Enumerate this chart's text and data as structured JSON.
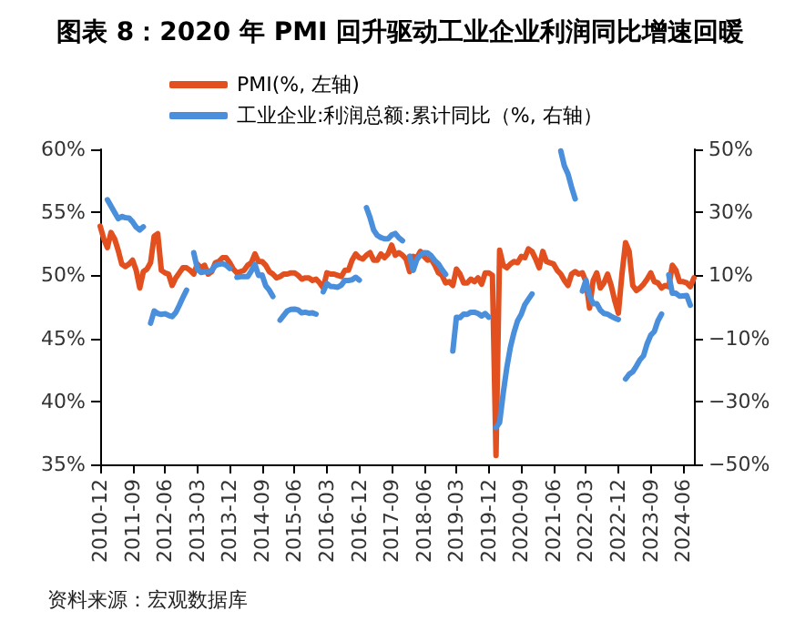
{
  "chart_data": {
    "type": "line",
    "title": "图表 8：2020 年 PMI 回升驱动工业企业利润同比增速回暖",
    "categories": [
      "2010-12",
      null,
      null,
      null,
      null,
      null,
      null,
      null,
      null,
      "2011-09",
      null,
      null,
      null,
      null,
      null,
      null,
      null,
      null,
      "2012-06",
      null,
      null,
      null,
      null,
      null,
      null,
      null,
      null,
      "2013-03",
      null,
      null,
      null,
      null,
      null,
      null,
      null,
      null,
      "2013-12",
      null,
      null,
      null,
      null,
      null,
      null,
      null,
      null,
      "2014-09",
      null,
      null,
      null,
      null,
      null,
      null,
      null,
      null,
      "2015-06",
      null,
      null,
      null,
      null,
      null,
      null,
      null,
      null,
      "2016-03",
      null,
      null,
      null,
      null,
      null,
      null,
      null,
      null,
      "2016-12",
      null,
      null,
      null,
      null,
      null,
      null,
      null,
      null,
      "2017-09",
      null,
      null,
      null,
      null,
      null,
      null,
      null,
      null,
      "2018-06",
      null,
      null,
      null,
      null,
      null,
      null,
      null,
      null,
      "2019-03",
      null,
      null,
      null,
      null,
      null,
      null,
      null,
      null,
      "2019-12",
      null,
      null,
      null,
      null,
      null,
      null,
      null,
      null,
      "2020-09",
      null,
      null,
      null,
      null,
      null,
      null,
      null,
      null,
      "2021-06",
      null,
      null,
      null,
      null,
      null,
      null,
      null,
      null,
      "2022-03",
      null,
      null,
      null,
      null,
      null,
      null,
      null,
      null,
      "2022-12",
      null,
      null,
      null,
      null,
      null,
      null,
      null,
      null,
      "2023-09",
      null,
      null,
      null,
      null,
      null,
      null,
      null,
      null,
      "2024-06",
      null,
      null,
      null
    ],
    "series": [
      {
        "name": "PMI(%, 左轴)",
        "color": "#e2501f",
        "values": [
          53.9,
          52.9,
          52.2,
          53.4,
          52.9,
          52.0,
          50.9,
          50.7,
          50.9,
          51.2,
          50.4,
          49.0,
          50.3,
          50.5,
          51.0,
          53.1,
          53.3,
          50.4,
          50.2,
          50.1,
          49.2,
          49.8,
          50.2,
          50.6,
          50.6,
          50.4,
          50.1,
          50.9,
          50.6,
          50.8,
          50.1,
          50.3,
          51.0,
          51.1,
          51.4,
          51.4,
          51.0,
          50.5,
          50.2,
          50.3,
          50.4,
          50.8,
          51.0,
          51.7,
          51.1,
          51.1,
          50.8,
          50.3,
          50.1,
          49.8,
          49.9,
          50.1,
          50.1,
          50.2,
          50.2,
          50.0,
          49.7,
          49.8,
          49.8,
          49.6,
          49.7,
          49.4,
          49.0,
          50.2,
          50.1,
          50.1,
          50.0,
          49.9,
          50.4,
          50.4,
          51.2,
          51.7,
          51.4,
          51.3,
          51.6,
          51.8,
          51.2,
          51.2,
          51.7,
          51.4,
          51.7,
          52.4,
          51.6,
          51.8,
          51.6,
          51.3,
          50.3,
          51.5,
          51.4,
          51.9,
          51.5,
          51.2,
          51.3,
          50.8,
          50.2,
          50.0,
          49.4,
          49.5,
          49.2,
          50.5,
          50.1,
          49.4,
          49.4,
          49.7,
          49.5,
          49.8,
          49.3,
          50.2,
          50.2,
          50.0,
          35.7,
          52.0,
          50.8,
          50.6,
          50.9,
          51.1,
          51.0,
          51.5,
          51.4,
          52.1,
          51.9,
          51.3,
          50.6,
          51.9,
          51.1,
          51.0,
          50.9,
          50.4,
          50.1,
          49.6,
          49.2,
          50.1,
          50.3,
          50.1,
          50.2,
          49.5,
          47.4,
          49.6,
          50.2,
          49.0,
          49.4,
          50.1,
          49.2,
          48.0,
          47.0,
          50.1,
          52.6,
          51.9,
          49.2,
          48.8,
          49.0,
          49.3,
          49.7,
          50.2,
          49.5,
          49.4,
          49.0,
          49.2,
          49.1,
          50.8,
          50.4,
          49.5,
          49.5,
          49.4,
          49.1,
          49.8
        ]
      },
      {
        "name": "工业企业:利润总额:累计同比（%, 右轴）",
        "color": "#4a8fdb",
        "axis": "y2",
        "values": [
          null,
          null,
          34,
          32,
          30,
          28,
          28.7,
          28.3,
          28.2,
          27,
          25.3,
          24.4,
          25.4,
          null,
          -5.2,
          -1.3,
          -2.1,
          -2.4,
          -2.2,
          -2.7,
          -3.1,
          -1.8,
          0.5,
          3,
          5.3,
          null,
          17.2,
          12.1,
          10.9,
          11.1,
          11.1,
          11.6,
          13.1,
          13.5,
          13.7,
          13.2,
          12.2,
          null,
          9.4,
          9.6,
          9.6,
          9.6,
          11.4,
          13.5,
          10.0,
          10.1,
          6.7,
          5.3,
          3.3,
          null,
          -4.2,
          -2.7,
          -1.3,
          -0.8,
          -0.7,
          -1.0,
          -1.9,
          -1.7,
          -2.0,
          -1.9,
          -2.3,
          null,
          4.8,
          7.4,
          6.5,
          6.4,
          6.2,
          6.9,
          8.4,
          8.4,
          8.6,
          9.4,
          8.5,
          null,
          31.5,
          28.3,
          24.4,
          22.7,
          22.0,
          21.6,
          21.6,
          22.8,
          23.3,
          21.9,
          21.0,
          null,
          16.1,
          11.6,
          15.0,
          16.5,
          17.2,
          17.1,
          16.2,
          14.7,
          13.6,
          11.8,
          10.3,
          null,
          -14.0,
          -3.3,
          -3.4,
          -2.3,
          -2.4,
          -1.7,
          -1.7,
          -2.1,
          -2.9,
          -2.1,
          -3.3,
          null,
          -38.3,
          -36.7,
          -27.4,
          -19.3,
          -12.8,
          -8.1,
          -4.4,
          -2.4,
          0.7,
          2.4,
          4.1,
          null,
          null,
          null,
          null,
          null,
          null,
          null,
          49.5,
          44.7,
          42.2,
          38,
          34.3,
          null,
          5.0,
          8.5,
          3.5,
          1.0,
          1.0,
          -1.1,
          -2.1,
          -2.3,
          -3.0,
          -3.6,
          -4.0,
          null,
          -22.9,
          -21.4,
          -20.6,
          -18.8,
          -16.8,
          -15.5,
          -11.7,
          -9.0,
          -7.8,
          -4.4,
          -2.3,
          null,
          10.2,
          4.3,
          4.3,
          3.4,
          3.5,
          3.6,
          0.5,
          null
        ]
      }
    ],
    "ylim": [
      35,
      60
    ],
    "yticks": [
      {
        "value": 35,
        "label": "35%"
      },
      {
        "value": 40,
        "label": "40%"
      },
      {
        "value": 45,
        "label": "45%"
      },
      {
        "value": 50,
        "label": "50%"
      },
      {
        "value": 55,
        "label": "55%"
      },
      {
        "value": 60,
        "label": "60%"
      }
    ],
    "y2lim": [
      -50,
      50
    ],
    "y2ticks": [
      {
        "value": -50,
        "label": "−50%"
      },
      {
        "value": -30,
        "label": "−30%"
      },
      {
        "value": -10,
        "label": "−10%"
      },
      {
        "value": 10,
        "label": "10%"
      },
      {
        "value": 30,
        "label": "30%"
      },
      {
        "value": 50,
        "label": "50%"
      }
    ],
    "legend": "top",
    "grid": false,
    "line_style": "solid",
    "marker": "none",
    "annotations": [
      "资料来源：宏观数据库"
    ]
  }
}
